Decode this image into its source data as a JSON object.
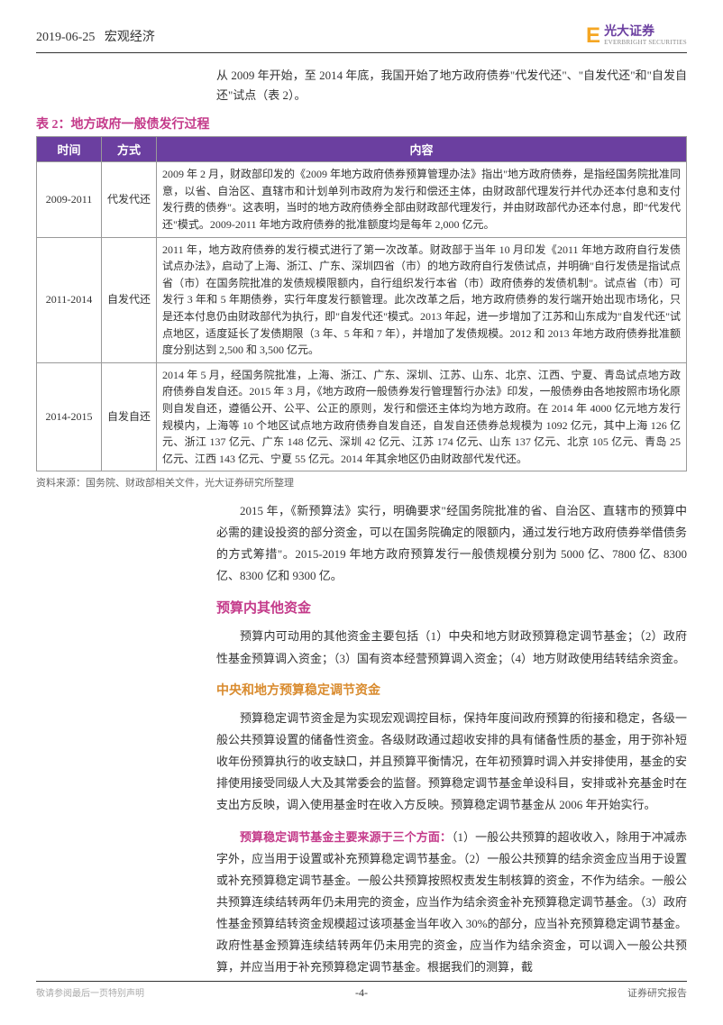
{
  "header": {
    "date": "2019-06-25",
    "category": "宏观经济",
    "logo_cn": "光大证券",
    "logo_en": "EVERBRIGHT SECURITIES"
  },
  "intro": "从 2009 年开始，至 2014 年底，我国开始了地方政府债券\"代发代还\"、\"自发代还\"和\"自发自还\"试点（表 2）。",
  "table": {
    "title": "表 2：地方政府一般债发行过程",
    "headers": [
      "时间",
      "方式",
      "内容"
    ],
    "rows": [
      {
        "time": "2009-2011",
        "method": "代发代还",
        "content": "2009 年 2 月，财政部印发的《2009 年地方政府债券预算管理办法》指出\"地方政府债券，是指经国务院批准同意，以省、自治区、直辖市和计划单列市政府为发行和偿还主体，由财政部代理发行并代办还本付息和支付发行费的债券\"。这表明，当时的地方政府债券全部由财政部代理发行，并由财政部代办还本付息，即\"代发代还\"模式。2009-2011 年地方政府债券的批准额度均是每年 2,000 亿元。"
      },
      {
        "time": "2011-2014",
        "method": "自发代还",
        "content": "2011 年，地方政府债券的发行模式进行了第一次改革。财政部于当年 10 月印发《2011 年地方政府自行发债试点办法》，启动了上海、浙江、广东、深圳四省（市）的地方政府自行发债试点，并明确\"自行发债是指试点省（市）在国务院批准的发债规模限额内，自行组织发行本省（市）政府债券的发债机制\"。试点省（市）可发行 3 年和 5 年期债券，实行年度发行额管理。此次改革之后，地方政府债券的发行端开始出现市场化，只是还本付息仍由财政部代为执行，即\"自发代还\"模式。2013 年起，进一步增加了江苏和山东成为\"自发代还\"试点地区，适度延长了发债期限（3 年、5 年和 7 年），并增加了发债规模。2012 和 2013 年地方政府债券批准额度分别达到 2,500 和 3,500 亿元。"
      },
      {
        "time": "2014-2015",
        "method": "自发自还",
        "content": "2014 年 5 月，经国务院批准，上海、浙江、广东、深圳、江苏、山东、北京、江西、宁夏、青岛试点地方政府债券自发自还。2015 年 3 月，《地方政府一般债券发行管理暂行办法》印发，一般债券由各地按照市场化原则自发自还，遵循公开、公平、公正的原则，发行和偿还主体均为地方政府。在 2014 年 4000 亿元地方发行规模内，上海等 10 个地区试点地方政府债券自发自还，自发自还债券总规模为 1092 亿元，其中上海 126 亿元、浙江 137 亿元、广东 148 亿元、深圳 42 亿元、江苏 174 亿元、山东 137 亿元、北京 105 亿元、青岛 25 亿元、江西 143 亿元、宁夏 55 亿元。2014 年其余地区仍由财政部代发代还。"
      }
    ],
    "source": "资料来源：国务院、财政部相关文件，光大证券研究所整理"
  },
  "paragraphs": {
    "p1": "2015 年，《新预算法》实行，明确要求\"经国务院批准的省、自治区、直辖市的预算中必需的建设投资的部分资金，可以在国务院确定的限额内，通过发行地方政府债券举借债务的方式筹措\"。2015-2019 年地方政府预算发行一般债规模分别为 5000 亿、7800 亿、8300 亿、8300 亿和 9300 亿。",
    "h1": "预算内其他资金",
    "p2": "预算内可动用的其他资金主要包括（1）中央和地方财政预算稳定调节基金；（2）政府性基金预算调入资金；（3）国有资本经营预算调入资金；（4）地方财政使用结转结余资金。",
    "h2": "中央和地方预算稳定调节资金",
    "p3": "预算稳定调节资金是为实现宏观调控目标，保持年度间政府预算的衔接和稳定，各级一般公共预算设置的储备性资金。各级财政通过超收安排的具有储备性质的基金，用于弥补短收年份预算执行的收支缺口，并且预算平衡情况，在年初预算时调入并安排使用，基金的安排使用接受同级人大及其常委会的监督。预算稳定调节基金单设科目，安排或补充基金时在支出方反映，调入使用基金时在收入方反映。预算稳定调节基金从 2006 年开始实行。",
    "p4_emph": "预算稳定调节基金主要来源于三个方面：",
    "p4_rest": "（1）一般公共预算的超收收入，除用于冲减赤字外，应当用于设置或补充预算稳定调节基金。（2）一般公共预算的结余资金应当用于设置或补充预算稳定调节基金。一般公共预算按照权责发生制核算的资金，不作为结余。一般公共预算连续结转两年仍未用完的资金，应当作为结余资金补充预算稳定调节基金。（3）政府性基金预算结转资金规模超过该项基金当年收入 30%的部分，应当补充预算稳定调节基金。政府性基金预算连续结转两年仍未用完的资金，应当作为结余资金，可以调入一般公共预算，并应当用于补充预算稳定调节基金。根据我们的测算，截"
  },
  "footer": {
    "left": "敬请参阅最后一页特别声明",
    "center": "-4-",
    "right": "证券研究报告"
  },
  "colors": {
    "brand_purple": "#6b3fa0",
    "heading_magenta": "#c43a8a",
    "sub_orange": "#d98b2e",
    "logo_orange": "#f5a623",
    "border_gray": "#999999",
    "text": "#333333"
  }
}
